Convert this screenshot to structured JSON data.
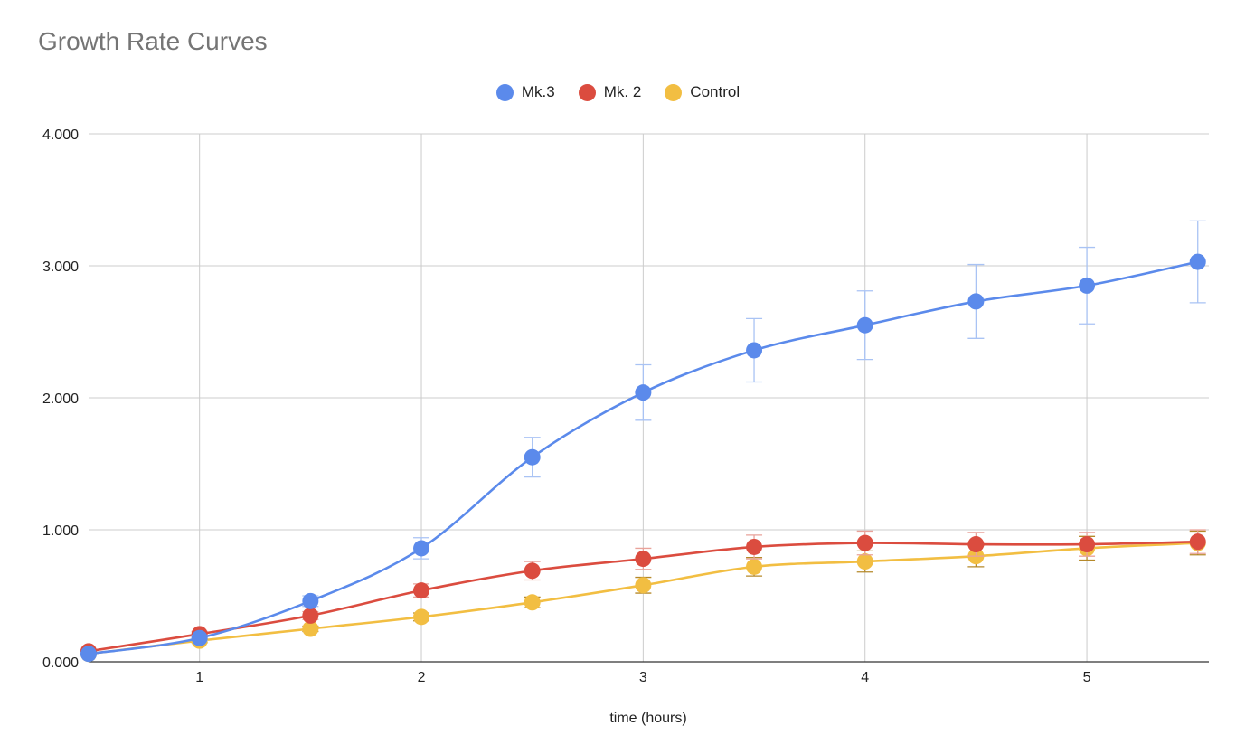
{
  "chart_data": {
    "type": "line",
    "title": "Growth Rate Curves",
    "xlabel": "time (hours)",
    "ylabel": "",
    "xlim": [
      0.5,
      5.55
    ],
    "ylim": [
      0,
      4
    ],
    "x_ticks": [
      1,
      2,
      3,
      4,
      5
    ],
    "x_tick_labels": [
      "1",
      "2",
      "3",
      "4",
      "5"
    ],
    "y_ticks": [
      0,
      1,
      2,
      3,
      4
    ],
    "y_tick_labels": [
      "0.000",
      "1.000",
      "2.000",
      "3.000",
      "4.000"
    ],
    "grid": true,
    "legend_position": "top",
    "x": [
      0.5,
      1,
      1.5,
      2,
      2.5,
      3,
      3.5,
      4,
      4.5,
      5,
      5.5
    ],
    "series": [
      {
        "name": "Mk.3",
        "color": "#5B8AEB",
        "error_color": "#A9C3F4",
        "values": [
          0.06,
          0.18,
          0.46,
          0.86,
          1.55,
          2.04,
          2.36,
          2.55,
          2.73,
          2.85,
          3.03
        ],
        "errors": [
          0.01,
          0.02,
          0.04,
          0.08,
          0.15,
          0.21,
          0.24,
          0.26,
          0.28,
          0.29,
          0.31
        ]
      },
      {
        "name": "Mk. 2",
        "color": "#DB4C3F",
        "error_color": "#E9A29A",
        "values": [
          0.08,
          0.21,
          0.35,
          0.54,
          0.69,
          0.78,
          0.87,
          0.9,
          0.89,
          0.89,
          0.91
        ],
        "errors": [
          0.01,
          0.02,
          0.03,
          0.05,
          0.07,
          0.08,
          0.09,
          0.09,
          0.09,
          0.09,
          0.09
        ]
      },
      {
        "name": "Control",
        "color": "#F2BE42",
        "error_color": "#B5892A",
        "values": [
          0.06,
          0.16,
          0.25,
          0.34,
          0.45,
          0.58,
          0.72,
          0.76,
          0.8,
          0.86,
          0.9
        ],
        "errors": [
          0.01,
          0.015,
          0.02,
          0.03,
          0.04,
          0.06,
          0.07,
          0.08,
          0.08,
          0.09,
          0.09
        ]
      }
    ]
  }
}
